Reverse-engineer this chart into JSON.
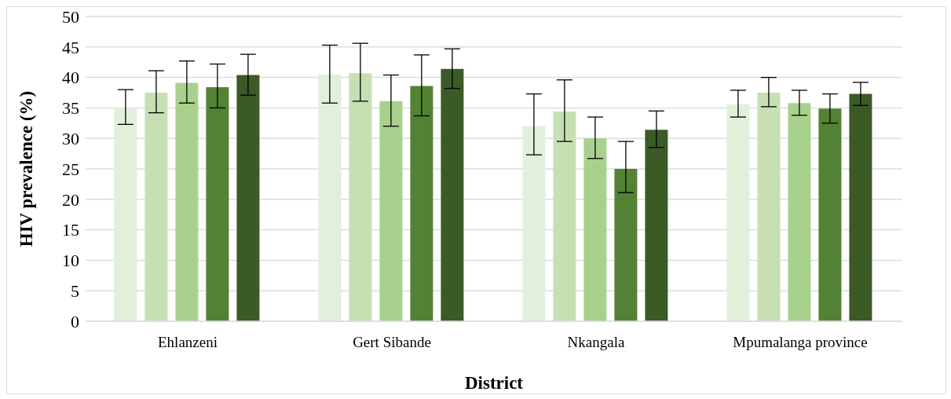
{
  "chart_data": {
    "type": "bar",
    "xlabel": "District",
    "ylabel": "HIV prevalence  (%)",
    "categories": [
      "Ehlanzeni",
      "Gert Sibande",
      "Nkangala",
      "Mpumalanga province"
    ],
    "series": [
      {
        "color": "#e2efda",
        "values": [
          35.0,
          40.5,
          32.0,
          35.6
        ],
        "errors": [
          [
            32.3,
            38.0
          ],
          [
            35.8,
            45.3
          ],
          [
            27.3,
            37.3
          ],
          [
            33.5,
            37.9
          ]
        ]
      },
      {
        "color": "#c6e0b4",
        "values": [
          37.5,
          40.7,
          34.4,
          37.5
        ],
        "errors": [
          [
            34.2,
            41.1
          ],
          [
            36.1,
            45.6
          ],
          [
            29.5,
            39.6
          ],
          [
            35.2,
            40.0
          ]
        ]
      },
      {
        "color": "#a9d18e",
        "values": [
          39.1,
          36.1,
          30.0,
          35.8
        ],
        "errors": [
          [
            35.8,
            42.7
          ],
          [
            32.0,
            40.4
          ],
          [
            26.7,
            33.5
          ],
          [
            33.8,
            37.9
          ]
        ]
      },
      {
        "color": "#548235",
        "values": [
          38.4,
          38.6,
          25.0,
          34.9
        ],
        "errors": [
          [
            35.0,
            42.2
          ],
          [
            33.7,
            43.7
          ],
          [
            21.1,
            29.5
          ],
          [
            32.5,
            37.3
          ]
        ]
      },
      {
        "color": "#3b5a26",
        "values": [
          40.4,
          41.4,
          31.4,
          37.3
        ],
        "errors": [
          [
            37.1,
            43.8
          ],
          [
            38.2,
            44.7
          ],
          [
            28.5,
            34.5
          ],
          [
            35.4,
            39.2
          ]
        ]
      }
    ],
    "ylim": [
      0,
      50
    ],
    "yticks": [
      0,
      5,
      10,
      15,
      20,
      25,
      30,
      35,
      40,
      45,
      50
    ],
    "grid": "y",
    "legend": false
  }
}
